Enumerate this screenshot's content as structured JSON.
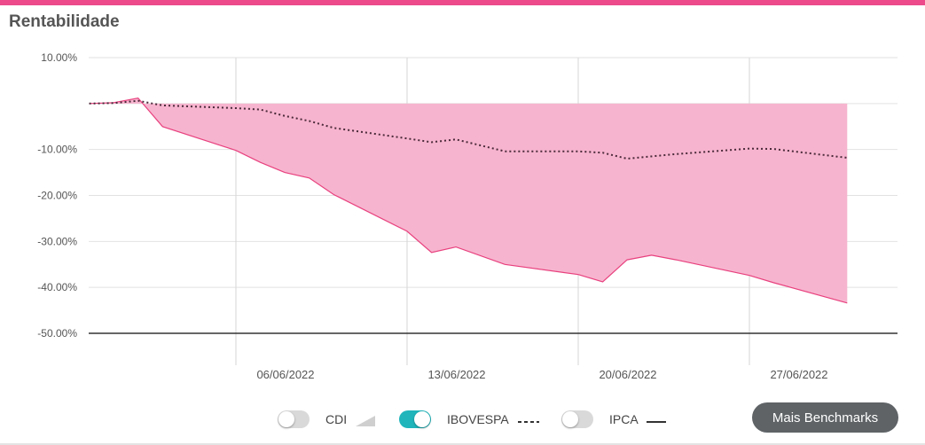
{
  "header": {
    "title": "Rentabilidade"
  },
  "colors": {
    "accent": "#ec4a8b",
    "area_fill": "#f7b4ce",
    "area_line": "#e8417e",
    "benchmark_line": "#4a2a3a",
    "toggle_on": "#1fb5bb",
    "toggle_off": "#d9d9d9"
  },
  "chart_data": {
    "type": "area",
    "x_tick_labels": [
      "06/06/2022",
      "13/06/2022",
      "20/06/2022",
      "27/06/2022"
    ],
    "y_tick_labels": [
      "10.00%",
      "-10.00%",
      "-20.00%",
      "-30.00%",
      "-40.00%",
      "-50.00%"
    ],
    "ylim": [
      -50,
      10
    ],
    "xlim": [
      "2022-05-31",
      "2022-07-02"
    ],
    "grid": true,
    "series": [
      {
        "name": "",
        "style": "filled-area",
        "points": [
          [
            "2022-05-31",
            0.0
          ],
          [
            "2022-06-01",
            0.2
          ],
          [
            "2022-06-02",
            1.2
          ],
          [
            "2022-06-03",
            -5.0
          ],
          [
            "2022-06-06",
            -10.2
          ],
          [
            "2022-06-07",
            -12.8
          ],
          [
            "2022-06-08",
            -15.0
          ],
          [
            "2022-06-09",
            -16.2
          ],
          [
            "2022-06-10",
            -19.8
          ],
          [
            "2022-06-13",
            -27.8
          ],
          [
            "2022-06-14",
            -32.4
          ],
          [
            "2022-06-15",
            -31.2
          ],
          [
            "2022-06-17",
            -35.0
          ],
          [
            "2022-06-20",
            -37.2
          ],
          [
            "2022-06-21",
            -38.8
          ],
          [
            "2022-06-22",
            -34.0
          ],
          [
            "2022-06-23",
            -33.0
          ],
          [
            "2022-06-24",
            -34.0
          ],
          [
            "2022-06-27",
            -37.4
          ],
          [
            "2022-06-28",
            -39.0
          ],
          [
            "2022-07-01",
            -43.4
          ]
        ]
      },
      {
        "name": "IBOVESPA",
        "style": "dotted",
        "points": [
          [
            "2022-05-31",
            0.0
          ],
          [
            "2022-06-01",
            0.1
          ],
          [
            "2022-06-02",
            0.6
          ],
          [
            "2022-06-03",
            -0.4
          ],
          [
            "2022-06-06",
            -1.0
          ],
          [
            "2022-06-07",
            -1.3
          ],
          [
            "2022-06-08",
            -2.7
          ],
          [
            "2022-06-09",
            -3.8
          ],
          [
            "2022-06-10",
            -5.3
          ],
          [
            "2022-06-13",
            -7.6
          ],
          [
            "2022-06-14",
            -8.4
          ],
          [
            "2022-06-15",
            -7.8
          ],
          [
            "2022-06-17",
            -10.4
          ],
          [
            "2022-06-20",
            -10.4
          ],
          [
            "2022-06-21",
            -10.7
          ],
          [
            "2022-06-22",
            -12.0
          ],
          [
            "2022-06-24",
            -11.0
          ],
          [
            "2022-06-27",
            -9.8
          ],
          [
            "2022-06-28",
            -9.9
          ],
          [
            "2022-07-01",
            -11.8
          ]
        ]
      }
    ]
  },
  "legend": {
    "cdi": {
      "label": "CDI",
      "enabled": false,
      "icon": "area-icon"
    },
    "ibovespa": {
      "label": "IBOVESPA",
      "enabled": true,
      "icon": "dotted-line-icon"
    },
    "ipca": {
      "label": "IPCA",
      "enabled": false,
      "icon": "solid-line-icon"
    }
  },
  "buttons": {
    "more_benchmarks": "Mais Benchmarks"
  }
}
